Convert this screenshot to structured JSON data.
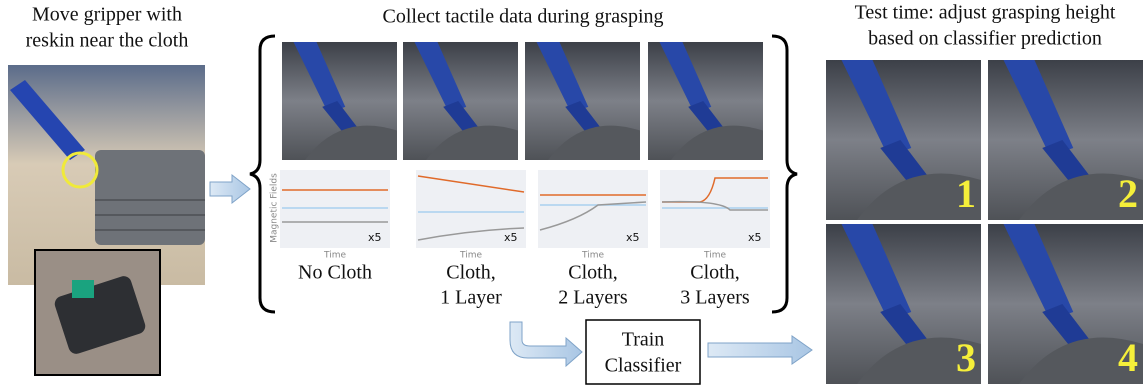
{
  "left": {
    "title_lines": [
      "Move gripper with",
      "reskin near the cloth"
    ]
  },
  "middle": {
    "title": "Collect tactile data during grasping",
    "y_axis_label": "Magnetic Fields",
    "conditions": [
      {
        "label_lines": [
          "No Cloth"
        ],
        "x_axis_label": "Time",
        "scale": "x5"
      },
      {
        "label_lines": [
          "Cloth,",
          "1 Layer"
        ],
        "x_axis_label": "Time",
        "scale": "x5"
      },
      {
        "label_lines": [
          "Cloth,",
          "2 Layers"
        ],
        "x_axis_label": "Time",
        "scale": "x5"
      },
      {
        "label_lines": [
          "Cloth,",
          "3 Layers"
        ],
        "x_axis_label": "Time",
        "scale": "x5"
      }
    ]
  },
  "classifier": {
    "lines": [
      "Train",
      "Classifier"
    ]
  },
  "right": {
    "title_lines": [
      "Test time: adjust grasping height",
      "based on classifier prediction"
    ],
    "panels": [
      "1",
      "2",
      "3",
      "4"
    ]
  }
}
